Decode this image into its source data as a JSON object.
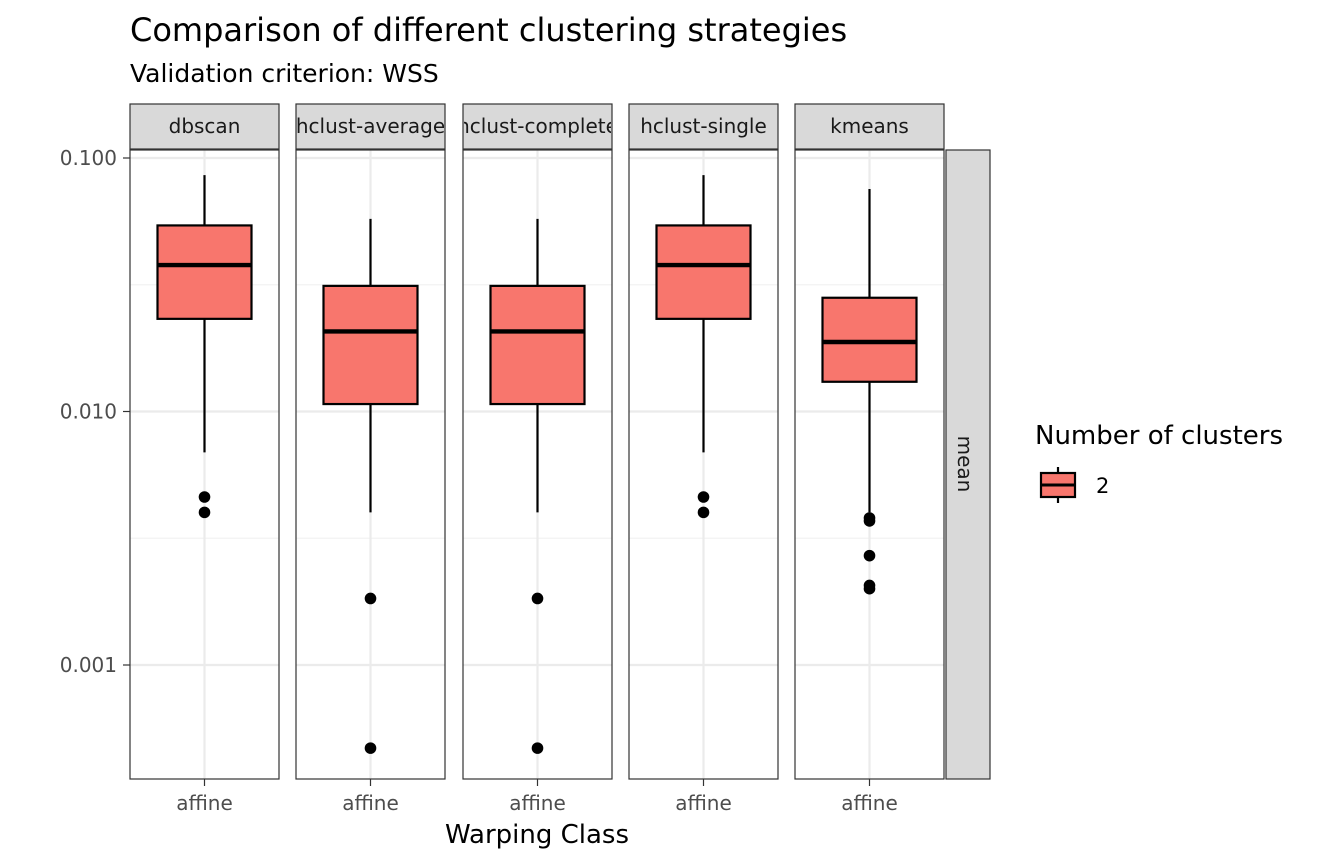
{
  "chart_data": {
    "type": "boxplot",
    "title": "Comparison of different clustering strategies",
    "subtitle": "Validation criterion: WSS",
    "xlabel": "Warping Class",
    "ylabel": "",
    "y_scale": "log10",
    "ylim": [
      0.0004,
      0.105
    ],
    "y_ticks": [
      0.001,
      0.01,
      0.1
    ],
    "y_tick_labels": [
      "0.001",
      "0.010",
      "0.100"
    ],
    "grid": true,
    "row_strip": "mean",
    "fill_color": "#F8766D",
    "facets": [
      {
        "label": "dbscan",
        "category": "affine",
        "box": {
          "whisker_low": 0.0069,
          "q1": 0.0232,
          "median": 0.0378,
          "q3": 0.0542,
          "whisker_high": 0.0856
        },
        "outliers": [
          0.0046,
          0.004
        ]
      },
      {
        "label": "hclust-average",
        "category": "affine",
        "box": {
          "whisker_low": 0.004,
          "q1": 0.0107,
          "median": 0.0207,
          "q3": 0.0313,
          "whisker_high": 0.0575
        },
        "outliers": [
          0.00183,
          0.00047
        ]
      },
      {
        "label": "hclust-complete",
        "category": "affine",
        "box": {
          "whisker_low": 0.004,
          "q1": 0.0107,
          "median": 0.0207,
          "q3": 0.0313,
          "whisker_high": 0.0575
        },
        "outliers": [
          0.00183,
          0.00047
        ]
      },
      {
        "label": "hclust-single",
        "category": "affine",
        "box": {
          "whisker_low": 0.0069,
          "q1": 0.0232,
          "median": 0.0378,
          "q3": 0.0542,
          "whisker_high": 0.0856
        },
        "outliers": [
          0.0046,
          0.004
        ]
      },
      {
        "label": "kmeans",
        "category": "affine",
        "box": {
          "whisker_low": 0.004,
          "q1": 0.0131,
          "median": 0.0188,
          "q3": 0.0281,
          "whisker_high": 0.0755
        },
        "outliers": [
          0.0038,
          0.0037,
          0.0027,
          0.00206,
          0.002
        ]
      }
    ],
    "legend": {
      "title": "Number of clusters",
      "position": "right",
      "items": [
        {
          "label": "2",
          "color": "#F8766D"
        }
      ]
    }
  }
}
